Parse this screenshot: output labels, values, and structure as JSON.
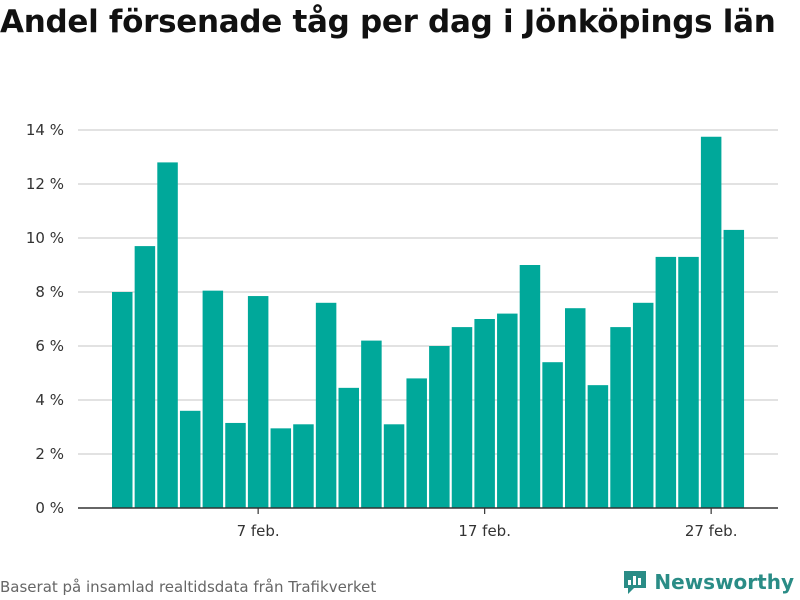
{
  "title": "Andel försenade tåg per dag i Jönköpings län",
  "source": "Baserat på insamlad realtidsdata från Trafikverket",
  "brand": {
    "name": "Newsworthy",
    "icon": "newsworthy-logo-icon"
  },
  "colors": {
    "bar": "#00a89a",
    "grid": "#d9d9d9",
    "axis": "#333333",
    "brand": "#2a8c86"
  },
  "chart_data": {
    "type": "bar",
    "title": "Andel försenade tåg per dag i Jönköpings län",
    "xlabel": "",
    "ylabel": "",
    "ylim": [
      0,
      14
    ],
    "yticks": [
      0,
      2,
      4,
      6,
      8,
      10,
      12,
      14
    ],
    "ytick_labels": [
      "0 %",
      "2 %",
      "4 %",
      "6 %",
      "8 %",
      "10 %",
      "12 %",
      "14 %"
    ],
    "xtick_labels": [
      {
        "label": "7 feb.",
        "category_index": 6
      },
      {
        "label": "17 feb.",
        "category_index": 16
      },
      {
        "label": "27 feb.",
        "category_index": 26
      }
    ],
    "grid": true,
    "categories": [
      "1 feb.",
      "2 feb.",
      "3 feb.",
      "4 feb.",
      "5 feb.",
      "6 feb.",
      "7 feb.",
      "8 feb.",
      "9 feb.",
      "10 feb.",
      "11 feb.",
      "12 feb.",
      "13 feb.",
      "14 feb.",
      "15 feb.",
      "16 feb.",
      "17 feb.",
      "18 feb.",
      "19 feb.",
      "20 feb.",
      "21 feb.",
      "22 feb.",
      "23 feb.",
      "24 feb.",
      "25 feb.",
      "26 feb.",
      "27 feb.",
      "28 feb."
    ],
    "values": [
      8.0,
      9.7,
      12.8,
      3.6,
      8.05,
      3.15,
      7.85,
      2.95,
      3.1,
      7.6,
      4.45,
      6.2,
      3.1,
      4.8,
      6.0,
      6.7,
      7.0,
      7.2,
      9.0,
      5.4,
      7.4,
      4.55,
      6.7,
      7.6,
      9.3,
      9.3,
      13.75,
      10.3
    ],
    "unit": "%"
  }
}
